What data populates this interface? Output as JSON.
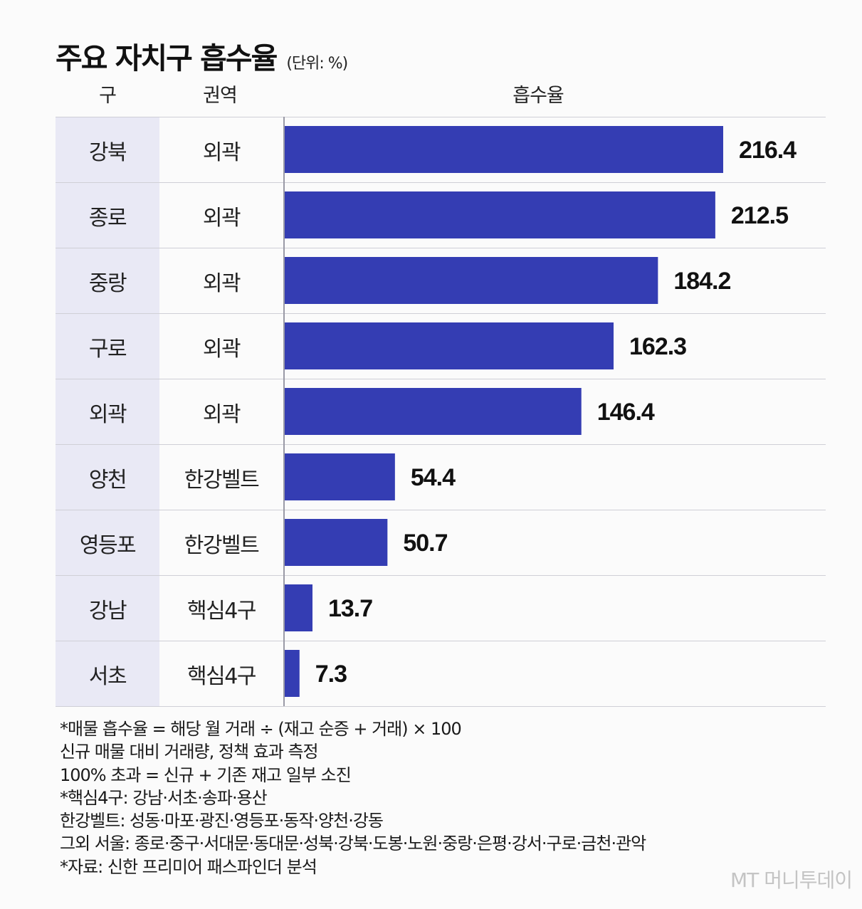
{
  "header": {
    "title": "주요 자치구 흡수율",
    "unit": "(단위: %)"
  },
  "table": {
    "col_gu": "구",
    "col_region": "권역",
    "col_rate": "흡수율",
    "rows": [
      {
        "gu": "강북",
        "region": "외곽",
        "value_label": "216.4"
      },
      {
        "gu": "종로",
        "region": "외곽",
        "value_label": "212.5"
      },
      {
        "gu": "중랑",
        "region": "외곽",
        "value_label": "184.2"
      },
      {
        "gu": "구로",
        "region": "외곽",
        "value_label": "162.3"
      },
      {
        "gu": "외곽",
        "region": "외곽",
        "value_label": "146.4"
      },
      {
        "gu": "양천",
        "region": "한강벨트",
        "value_label": "54.4"
      },
      {
        "gu": "영등포",
        "region": "한강벨트",
        "value_label": "50.7"
      },
      {
        "gu": "강남",
        "region": "핵심4구",
        "value_label": "13.7"
      },
      {
        "gu": "서초",
        "region": "핵심4구",
        "value_label": "7.3"
      }
    ]
  },
  "chart_data": {
    "type": "bar",
    "orientation": "horizontal",
    "title": "주요 자치구 흡수율",
    "unit": "%",
    "xlabel": "",
    "ylabel": "",
    "categories": [
      "강북",
      "종로",
      "중랑",
      "구로",
      "외곽",
      "양천",
      "영등포",
      "강남",
      "서초"
    ],
    "values": [
      216.4,
      212.5,
      184.2,
      162.3,
      146.4,
      54.4,
      50.7,
      13.7,
      7.3
    ],
    "xlim": [
      0,
      216.4
    ],
    "bar_color": "#343db3",
    "grid": false
  },
  "notes": [
    "*매물 흡수율 = 해당 월 거래 ÷ (재고 순증 + 거래) × 100",
    "신규 매물 대비 거래량, 정책 효과 측정",
    "100% 초과 = 신규 + 기존 재고 일부 소진",
    "*핵심4구: 강남·서초·송파·용산",
    "한강벨트: 성동·마포·광진·영등포·동작·양천·강동",
    "그외 서울: 종로·중구·서대문·동대문·성북·강북·도봉·노원·중랑·은평·강서·구로·금천·관악",
    "*자료: 신한 프리미어 패스파인더 분석"
  ],
  "watermark": "MT 머니투데이"
}
